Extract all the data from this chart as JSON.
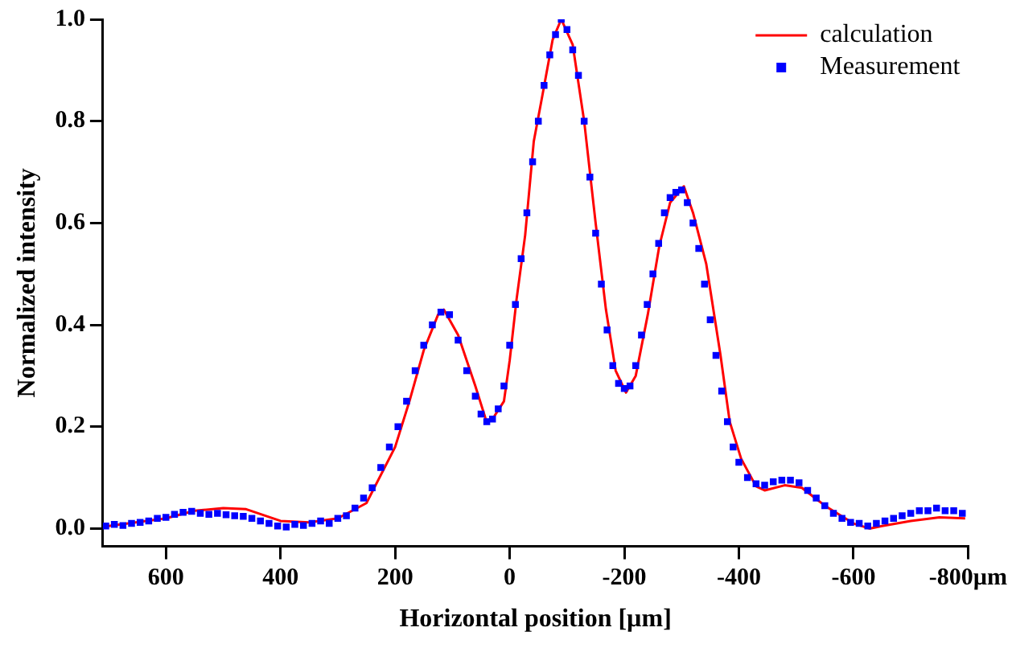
{
  "chart_data": {
    "type": "line",
    "xlabel": "Horizontal position [µm]",
    "ylabel": "Normalized intensity",
    "xlim": [
      710,
      -800
    ],
    "xticks": [
      600,
      400,
      200,
      0,
      -200,
      -400,
      -600,
      {
        "value": -800,
        "label": "-800µm"
      }
    ],
    "ylim": [
      -0.035,
      1.0
    ],
    "yticks": [
      {
        "value": 0,
        "label": "0.0"
      },
      {
        "value": 0.2,
        "label": "0.2"
      },
      {
        "value": 0.4,
        "label": "0.4"
      },
      {
        "value": 0.6,
        "label": "0.6"
      },
      {
        "value": 0.8,
        "label": "0.8"
      },
      {
        "value": 1,
        "label": "1.0"
      }
    ],
    "grid": false,
    "legend": "top right",
    "series": [
      {
        "name": "calculation",
        "color": "#ff0000",
        "marker": "none",
        "x": [
          700,
          600,
          550,
          500,
          460,
          400,
          350,
          300,
          250,
          200,
          175,
          150,
          125,
          115,
          90,
          60,
          41,
          30,
          10,
          0,
          -12,
          -27,
          -42,
          -57,
          -75,
          -90,
          -110,
          -130,
          -150,
          -168,
          -185,
          -203,
          -220,
          -241,
          -261,
          -280,
          -304,
          -320,
          -343,
          -368,
          -384,
          -404,
          -430,
          -445,
          -480,
          -510,
          -550,
          -600,
          -628,
          -650,
          -700,
          -750,
          -795
        ],
        "values": [
          0.005,
          0.02,
          0.035,
          0.04,
          0.038,
          0.015,
          0.012,
          0.02,
          0.05,
          0.16,
          0.25,
          0.35,
          0.42,
          0.43,
          0.38,
          0.28,
          0.212,
          0.215,
          0.25,
          0.33,
          0.45,
          0.576,
          0.76,
          0.85,
          0.96,
          1.0,
          0.95,
          0.8,
          0.6,
          0.43,
          0.31,
          0.267,
          0.3,
          0.42,
          0.554,
          0.64,
          0.672,
          0.62,
          0.52,
          0.34,
          0.21,
          0.137,
          0.083,
          0.075,
          0.085,
          0.08,
          0.045,
          0.01,
          0.0,
          0.005,
          0.015,
          0.022,
          0.02
        ]
      },
      {
        "name": "Measurement",
        "type": "scatter",
        "color": "#0000ff",
        "marker": "square",
        "x": [
          705,
          690,
          675,
          660,
          645,
          630,
          615,
          600,
          585,
          570,
          555,
          540,
          525,
          510,
          495,
          480,
          465,
          450,
          435,
          420,
          405,
          390,
          375,
          360,
          345,
          330,
          315,
          300,
          285,
          270,
          255,
          240,
          225,
          210,
          195,
          180,
          165,
          150,
          135,
          120,
          105,
          90,
          75,
          60,
          50,
          40,
          30,
          20,
          10,
          0,
          -10,
          -20,
          -30,
          -40,
          -50,
          -60,
          -70,
          -80,
          -90,
          -100,
          -110,
          -120,
          -130,
          -140,
          -150,
          -160,
          -170,
          -180,
          -190,
          -200,
          -210,
          -220,
          -230,
          -240,
          -250,
          -260,
          -270,
          -280,
          -290,
          -300,
          -310,
          -320,
          -330,
          -340,
          -350,
          -360,
          -370,
          -380,
          -390,
          -400,
          -415,
          -430,
          -445,
          -460,
          -475,
          -490,
          -505,
          -520,
          -535,
          -550,
          -565,
          -580,
          -595,
          -610,
          -625,
          -640,
          -655,
          -670,
          -685,
          -700,
          -715,
          -730,
          -745,
          -760,
          -775,
          -790
        ],
        "values": [
          0.005,
          0.008,
          0.006,
          0.01,
          0.012,
          0.015,
          0.02,
          0.022,
          0.028,
          0.032,
          0.034,
          0.03,
          0.028,
          0.03,
          0.027,
          0.025,
          0.024,
          0.02,
          0.015,
          0.01,
          0.005,
          0.003,
          0.008,
          0.006,
          0.01,
          0.015,
          0.01,
          0.02,
          0.025,
          0.04,
          0.06,
          0.08,
          0.12,
          0.16,
          0.2,
          0.25,
          0.31,
          0.36,
          0.4,
          0.425,
          0.42,
          0.37,
          0.31,
          0.26,
          0.225,
          0.21,
          0.215,
          0.235,
          0.28,
          0.36,
          0.44,
          0.53,
          0.62,
          0.72,
          0.8,
          0.87,
          0.93,
          0.97,
          1.0,
          0.98,
          0.94,
          0.89,
          0.8,
          0.69,
          0.58,
          0.48,
          0.39,
          0.32,
          0.285,
          0.275,
          0.28,
          0.32,
          0.38,
          0.44,
          0.5,
          0.56,
          0.62,
          0.65,
          0.66,
          0.665,
          0.64,
          0.6,
          0.55,
          0.48,
          0.41,
          0.34,
          0.27,
          0.21,
          0.16,
          0.13,
          0.1,
          0.088,
          0.085,
          0.092,
          0.095,
          0.095,
          0.09,
          0.075,
          0.06,
          0.045,
          0.03,
          0.02,
          0.012,
          0.01,
          0.005,
          0.01,
          0.015,
          0.02,
          0.025,
          0.03,
          0.035,
          0.035,
          0.04,
          0.035,
          0.035,
          0.03
        ]
      }
    ]
  }
}
